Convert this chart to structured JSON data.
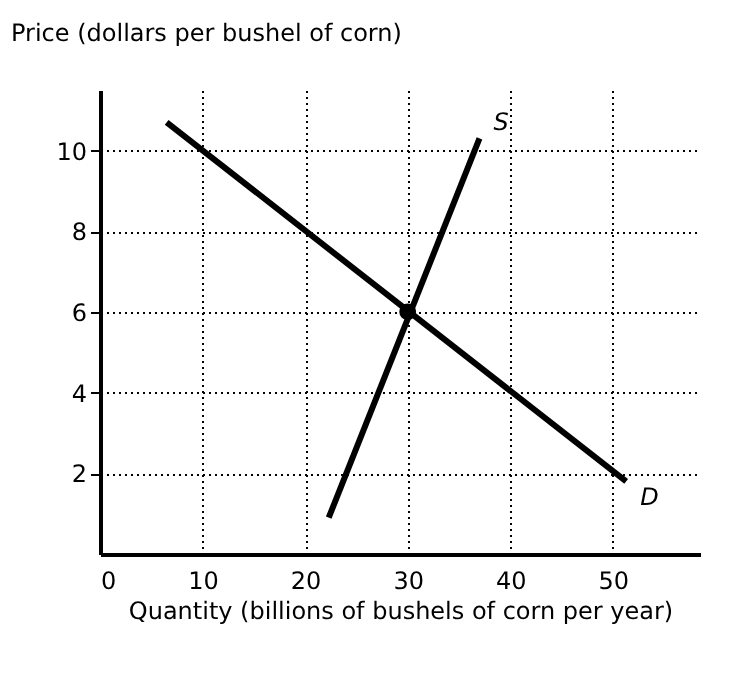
{
  "chart_data": {
    "type": "line",
    "xlabel": "Quantity (billions of bushels of corn per year)",
    "ylabel": "Price (dollars per bushel of corn)",
    "xlim": [
      0,
      58.5
    ],
    "ylim": [
      0,
      11.5
    ],
    "xticks": [
      0,
      10,
      20,
      30,
      40,
      50
    ],
    "yticks": [
      2,
      4,
      6,
      8,
      10
    ],
    "grid": true,
    "line_style": "solid",
    "marker": "none",
    "series": [
      {
        "name": "S",
        "color": "#000000",
        "x": [
          22.3,
          37
        ],
        "values": [
          0.9,
          10.3
        ]
      },
      {
        "name": "D",
        "color": "#000000",
        "x": [
          6.5,
          51.3
        ],
        "values": [
          10.7,
          1.8
        ]
      },
      {
        "type": "scatter",
        "marker": "circle",
        "color": "#000000",
        "x": [
          30
        ],
        "values": [
          6
        ]
      }
    ]
  }
}
